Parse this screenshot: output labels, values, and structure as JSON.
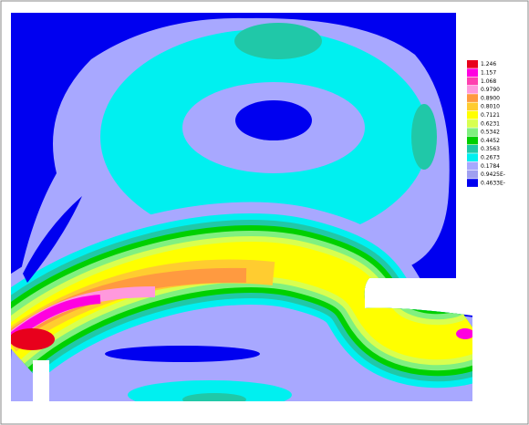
{
  "legend": {
    "levels": [
      {
        "label": "1.246",
        "color": "#e8001c"
      },
      {
        "label": "1.157",
        "color": "#ff00e0"
      },
      {
        "label": "1.068",
        "color": "#ff40b0"
      },
      {
        "label": "0.9790",
        "color": "#ff99dd"
      },
      {
        "label": "0.8900",
        "color": "#ff9a40"
      },
      {
        "label": "0.8010",
        "color": "#ffcc30"
      },
      {
        "label": "0.7121",
        "color": "#ffff00"
      },
      {
        "label": "0.6231",
        "color": "#d8ff50"
      },
      {
        "label": "0.5342",
        "color": "#80f080"
      },
      {
        "label": "0.4452",
        "color": "#00d000"
      },
      {
        "label": "0.3563",
        "color": "#20c8a8"
      },
      {
        "label": "0.2673",
        "color": "#00f0f0"
      },
      {
        "label": "0.1784",
        "color": "#a8a8ff"
      },
      {
        "label": "0.9425E-",
        "color": "#a0a0f0"
      },
      {
        "label": "0.4633E-",
        "color": "#0000f0"
      }
    ]
  }
}
